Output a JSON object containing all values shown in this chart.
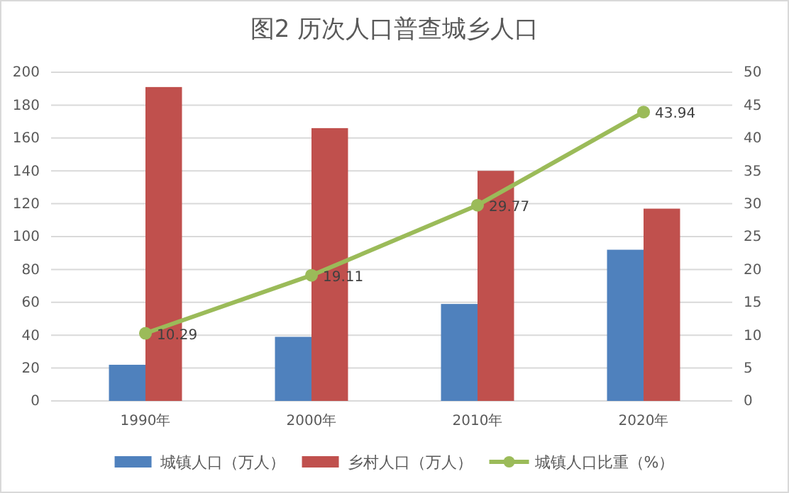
{
  "chart_data": {
    "type": "bar",
    "title": "图2  历次人口普查城乡人口",
    "categories": [
      "1990年",
      "2000年",
      "2010年",
      "2020年"
    ],
    "series": [
      {
        "name": "城镇人口（万人）",
        "color": "#4f81bd",
        "values": [
          22,
          39,
          59,
          92
        ]
      },
      {
        "name": "乡村人口（万人）",
        "color": "#c0504d",
        "values": [
          191,
          166,
          140,
          117
        ]
      },
      {
        "name": "城镇人口比重（%）",
        "type": "line",
        "axis": "y2",
        "color": "#9bbb59",
        "values": [
          10.29,
          19.11,
          29.77,
          43.94
        ],
        "value_labels": [
          "10.29",
          "19.11",
          "29.77",
          "43.94"
        ]
      }
    ],
    "ylim": [
      0,
      200
    ],
    "yticks": [
      0,
      20,
      40,
      60,
      80,
      100,
      120,
      140,
      160,
      180,
      200
    ],
    "y2lim": [
      0,
      50
    ],
    "y2ticks": [
      0,
      5,
      10,
      15,
      20,
      25,
      30,
      35,
      40,
      45,
      50
    ],
    "grid": "y",
    "legend": "bottom",
    "marker": "circle"
  }
}
